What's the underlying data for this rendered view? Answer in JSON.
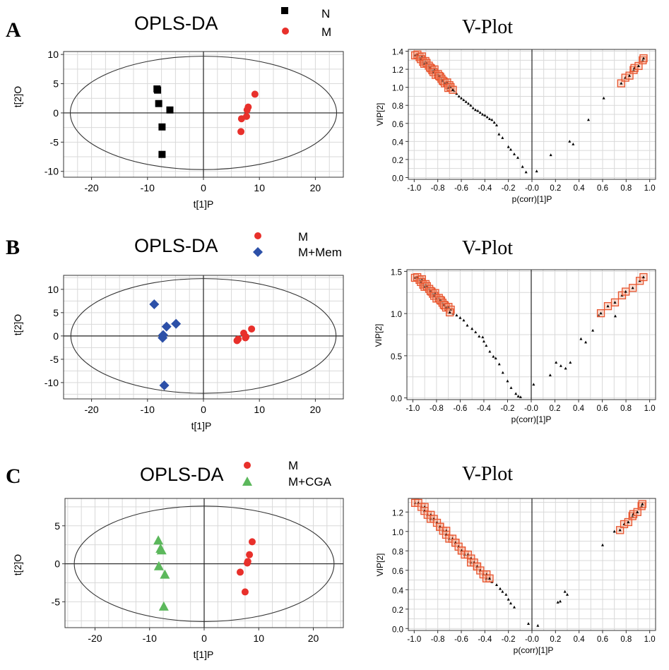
{
  "figure": {
    "panels": [
      {
        "letter": "A",
        "score_plot": {
          "title": "OPLS-DA",
          "xlabel": "t[1]P",
          "ylabel": "t[2]O",
          "legend": [
            {
              "label": "N",
              "marker": "square",
              "color": "#000000"
            },
            {
              "label": "M",
              "marker": "circle",
              "color": "#e8302b"
            }
          ]
        },
        "v_plot": {
          "title": "V-Plot",
          "xlabel": "p(corr)[1]P",
          "ylabel": "VIP[2]"
        }
      },
      {
        "letter": "B",
        "score_plot": {
          "title": "OPLS-DA",
          "xlabel": "t[1]P",
          "ylabel": "t[2]O",
          "legend": [
            {
              "label": "M",
              "marker": "circle",
              "color": "#e8302b"
            },
            {
              "label": "M+Mem",
              "marker": "diamond",
              "color": "#2c50a8"
            }
          ]
        },
        "v_plot": {
          "title": "V-Plot",
          "xlabel": "p(corr)[1]P",
          "ylabel": "VIP[2]"
        }
      },
      {
        "letter": "C",
        "score_plot": {
          "title": "OPLS-DA",
          "xlabel": "t[1]P",
          "ylabel": "t[2]O",
          "legend": [
            {
              "label": "M",
              "marker": "circle",
              "color": "#e8302b"
            },
            {
              "label": "M+CGA",
              "marker": "triangle",
              "color": "#5cb85c"
            }
          ]
        },
        "v_plot": {
          "title": "V-Plot",
          "xlabel": "p(corr)[1]P",
          "ylabel": "VIP[2]"
        }
      }
    ]
  },
  "chart_data": [
    {
      "id": "A-score",
      "type": "scatter",
      "title": "OPLS-DA",
      "xlabel": "t[1]P",
      "ylabel": "t[2]O",
      "xlim": [
        -25,
        25
      ],
      "ylim": [
        -11,
        10.5
      ],
      "grid": true,
      "xticks": [
        -20,
        -10,
        0,
        10,
        20
      ],
      "yticks": [
        -10,
        -5,
        0,
        5,
        10
      ],
      "ellipse": {
        "rx": 23.8,
        "ry": 9.7
      },
      "series": [
        {
          "name": "N",
          "marker": "square",
          "color": "#000000",
          "points": [
            [
              -8.3,
              4.1
            ],
            [
              -8.2,
              3.9
            ],
            [
              -8.0,
              1.6
            ],
            [
              -6.0,
              0.5
            ],
            [
              -7.4,
              -2.4
            ],
            [
              -7.4,
              -7.1
            ]
          ]
        },
        {
          "name": "M",
          "marker": "circle",
          "color": "#e8302b",
          "points": [
            [
              9.2,
              3.2
            ],
            [
              8.0,
              1.0
            ],
            [
              7.8,
              0.5
            ],
            [
              7.7,
              -0.6
            ],
            [
              6.8,
              -1.0
            ],
            [
              6.7,
              -3.2
            ]
          ]
        }
      ]
    },
    {
      "id": "A-vplot",
      "type": "scatter",
      "title": "V-Plot",
      "xlabel": "p(corr)[1]P",
      "ylabel": "VIP[2]",
      "xlim": [
        -1.05,
        1.05
      ],
      "ylim": [
        -0.02,
        1.42
      ],
      "grid": true,
      "xticks": [
        -1.0,
        -0.8,
        -0.6,
        -0.4,
        -0.2,
        -0.0,
        0.2,
        0.4,
        0.6,
        0.8,
        1.0
      ],
      "xtick_labels": [
        "-1.0",
        "-0.8",
        "-0.6",
        "-0.4",
        "-0.2",
        "-0.0",
        "0.2",
        "0.4",
        "0.6",
        "0.8",
        "1.0"
      ],
      "yticks": [
        0.0,
        0.2,
        0.4,
        0.6,
        0.8,
        1.0,
        1.2,
        1.4
      ],
      "ytick_labels": [
        "0.0",
        "0.2",
        "0.4",
        "0.6",
        "0.8",
        "1.0",
        "1.2",
        "1.4"
      ],
      "highlighted": {
        "curve_from": [
          -0.98,
          1.37
        ],
        "curve_to": [
          -0.68,
          0.98
        ],
        "right_from": [
          0.77,
          1.06
        ],
        "right_to": [
          0.96,
          1.33
        ],
        "count_left": 28,
        "count_right": 8
      },
      "points": [
        [
          -0.66,
          0.96
        ],
        [
          -0.64,
          0.93
        ],
        [
          -0.62,
          0.9
        ],
        [
          -0.6,
          0.88
        ],
        [
          -0.58,
          0.86
        ],
        [
          -0.56,
          0.84
        ],
        [
          -0.54,
          0.82
        ],
        [
          -0.52,
          0.8
        ],
        [
          -0.5,
          0.77
        ],
        [
          -0.48,
          0.75
        ],
        [
          -0.46,
          0.74
        ],
        [
          -0.44,
          0.72
        ],
        [
          -0.42,
          0.7
        ],
        [
          -0.4,
          0.69
        ],
        [
          -0.38,
          0.67
        ],
        [
          -0.36,
          0.65
        ],
        [
          -0.34,
          0.64
        ],
        [
          -0.32,
          0.61
        ],
        [
          -0.3,
          0.58
        ],
        [
          -0.28,
          0.48
        ],
        [
          -0.25,
          0.44
        ],
        [
          -0.2,
          0.34
        ],
        [
          -0.18,
          0.31
        ],
        [
          -0.15,
          0.26
        ],
        [
          -0.12,
          0.22
        ],
        [
          -0.08,
          0.12
        ],
        [
          -0.05,
          0.06
        ],
        [
          0.04,
          0.07
        ],
        [
          0.16,
          0.25
        ],
        [
          0.32,
          0.4
        ],
        [
          0.35,
          0.37
        ],
        [
          0.48,
          0.64
        ],
        [
          0.61,
          0.88
        ]
      ]
    },
    {
      "id": "B-score",
      "type": "scatter",
      "title": "OPLS-DA",
      "xlabel": "t[1]P",
      "ylabel": "t[2]O",
      "xlim": [
        -25,
        25
      ],
      "ylim": [
        -13.5,
        13
      ],
      "grid": true,
      "xticks": [
        -20,
        -10,
        0,
        10,
        20
      ],
      "yticks": [
        -10,
        -5,
        0,
        5,
        10
      ],
      "ellipse": {
        "rx": 23.7,
        "ry": 12.3
      },
      "series": [
        {
          "name": "M",
          "marker": "circle",
          "color": "#e8302b",
          "points": [
            [
              8.6,
              1.5
            ],
            [
              7.2,
              0.6
            ],
            [
              7.6,
              -0.2
            ],
            [
              7.5,
              -0.4
            ],
            [
              6.2,
              -0.7
            ],
            [
              6.0,
              -1.0
            ]
          ]
        },
        {
          "name": "M+Mem",
          "marker": "diamond",
          "color": "#2c50a8",
          "points": [
            [
              -8.8,
              6.8
            ],
            [
              -4.9,
              2.6
            ],
            [
              -6.6,
              2.0
            ],
            [
              -7.2,
              0.2
            ],
            [
              -7.3,
              -0.4
            ],
            [
              -7.0,
              -10.6
            ]
          ]
        }
      ]
    },
    {
      "id": "B-vplot",
      "type": "scatter",
      "title": "V-Plot",
      "xlabel": "p(corr)[1]P",
      "ylabel": "VIP[2]",
      "xlim": [
        -1.05,
        1.05
      ],
      "ylim": [
        -0.02,
        1.52
      ],
      "grid": true,
      "xticks": [
        -1.0,
        -0.8,
        -0.6,
        -0.4,
        -0.2,
        -0.0,
        0.2,
        0.4,
        0.6,
        0.8,
        1.0
      ],
      "xtick_labels": [
        "-1.0",
        "-0.8",
        "-0.6",
        "-0.4",
        "-0.2",
        "-0.0",
        "0.2",
        "0.4",
        "0.6",
        "0.8",
        "1.0"
      ],
      "yticks": [
        0.0,
        0.5,
        1.0,
        1.5
      ],
      "ytick_labels": [
        "0.0",
        "0.5",
        "1.0",
        "1.5"
      ],
      "highlighted": {
        "curve_from": [
          -0.97,
          1.44
        ],
        "curve_to": [
          -0.68,
          1.03
        ],
        "right_from": [
          0.6,
          1.02
        ],
        "right_to": [
          0.96,
          1.44
        ],
        "count_left": 26,
        "count_right": 8
      },
      "points": [
        [
          -0.66,
          1.0
        ],
        [
          -0.63,
          0.98
        ],
        [
          -0.6,
          0.95
        ],
        [
          -0.57,
          0.92
        ],
        [
          -0.54,
          0.86
        ],
        [
          -0.5,
          0.82
        ],
        [
          -0.47,
          0.78
        ],
        [
          -0.44,
          0.73
        ],
        [
          -0.41,
          0.72
        ],
        [
          -0.4,
          0.67
        ],
        [
          -0.38,
          0.62
        ],
        [
          -0.35,
          0.55
        ],
        [
          -0.32,
          0.49
        ],
        [
          -0.3,
          0.47
        ],
        [
          -0.27,
          0.4
        ],
        [
          -0.24,
          0.3
        ],
        [
          -0.2,
          0.2
        ],
        [
          -0.17,
          0.12
        ],
        [
          -0.13,
          0.05
        ],
        [
          -0.11,
          0.02
        ],
        [
          -0.09,
          0.01
        ],
        [
          0.02,
          0.16
        ],
        [
          0.16,
          0.27
        ],
        [
          0.21,
          0.42
        ],
        [
          0.25,
          0.38
        ],
        [
          0.29,
          0.35
        ],
        [
          0.33,
          0.42
        ],
        [
          0.42,
          0.7
        ],
        [
          0.46,
          0.66
        ],
        [
          0.52,
          0.8
        ],
        [
          0.57,
          0.98
        ],
        [
          0.71,
          0.97
        ]
      ]
    },
    {
      "id": "C-score",
      "type": "scatter",
      "title": "OPLS-DA",
      "xlabel": "t[1]P",
      "ylabel": "t[2]O",
      "xlim": [
        -25.5,
        25.5
      ],
      "ylim": [
        -8.4,
        8.6
      ],
      "grid": true,
      "xticks": [
        -20,
        -10,
        0,
        10,
        20
      ],
      "yticks": [
        -5,
        0,
        5
      ],
      "ellipse": {
        "rx": 23.8,
        "ry": 7.6
      },
      "series": [
        {
          "name": "M",
          "marker": "circle",
          "color": "#e8302b",
          "points": [
            [
              8.8,
              2.9
            ],
            [
              8.3,
              1.2
            ],
            [
              8.0,
              0.3
            ],
            [
              7.9,
              0.1
            ],
            [
              6.6,
              -1.1
            ],
            [
              7.5,
              -3.7
            ]
          ]
        },
        {
          "name": "M+CGA",
          "marker": "triangle",
          "color": "#5cb85c",
          "points": [
            [
              -8.4,
              3.1
            ],
            [
              -8.0,
              2.0
            ],
            [
              -7.8,
              1.8
            ],
            [
              -8.3,
              -0.3
            ],
            [
              -7.2,
              -1.4
            ],
            [
              -7.4,
              -5.6
            ]
          ]
        }
      ]
    },
    {
      "id": "C-vplot",
      "type": "scatter",
      "title": "V-Plot",
      "xlabel": "p(corr)[1]P",
      "ylabel": "VIP[2]",
      "xlim": [
        -1.05,
        1.05
      ],
      "ylim": [
        -0.02,
        1.34
      ],
      "grid": true,
      "xticks": [
        -1.0,
        -0.8,
        -0.6,
        -0.4,
        -0.2,
        -0.0,
        0.2,
        0.4,
        0.6,
        0.8,
        1.0
      ],
      "xtick_labels": [
        "-1.0",
        "-0.8",
        "-0.6",
        "-0.4",
        "-0.2",
        "-0.0",
        "0.2",
        "0.4",
        "0.6",
        "0.8",
        "1.0"
      ],
      "yticks": [
        0.0,
        0.2,
        0.4,
        0.6,
        0.8,
        1.0,
        1.2
      ],
      "ytick_labels": [
        "0.0",
        "0.2",
        "0.4",
        "0.6",
        "0.8",
        "1.0",
        "1.2"
      ],
      "highlighted": {
        "curve_from": [
          -0.98,
          1.31
        ],
        "curve_to": [
          -0.36,
          0.5
        ],
        "right_from": [
          0.76,
          1.03
        ],
        "right_to": [
          0.95,
          1.29
        ],
        "count_left": 34,
        "count_right": 8
      },
      "points": [
        [
          -0.34,
          0.48
        ],
        [
          -0.3,
          0.45
        ],
        [
          -0.27,
          0.41
        ],
        [
          -0.25,
          0.38
        ],
        [
          -0.22,
          0.35
        ],
        [
          -0.2,
          0.3
        ],
        [
          -0.18,
          0.26
        ],
        [
          -0.15,
          0.22
        ],
        [
          -0.03,
          0.05
        ],
        [
          0.05,
          0.03
        ],
        [
          0.22,
          0.27
        ],
        [
          0.24,
          0.28
        ],
        [
          0.28,
          0.38
        ],
        [
          0.3,
          0.35
        ],
        [
          0.6,
          0.86
        ],
        [
          0.7,
          1.0
        ]
      ]
    }
  ]
}
